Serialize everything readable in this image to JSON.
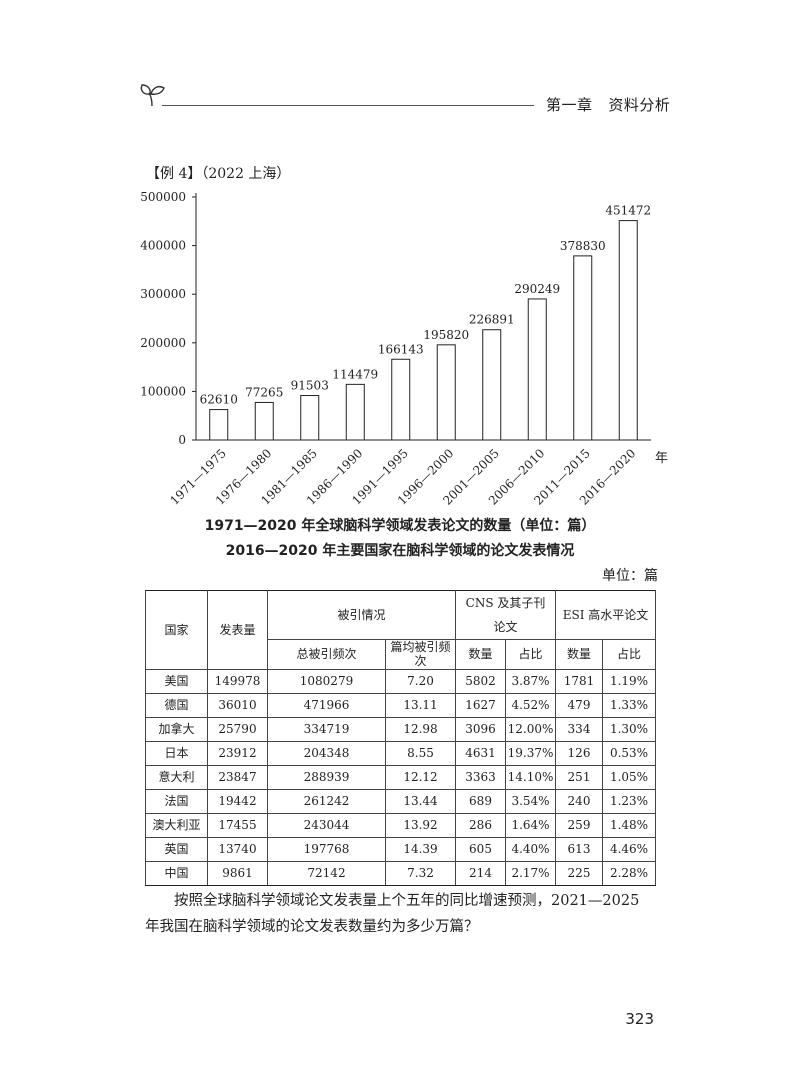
{
  "header": {
    "chapter": "第一章",
    "section": "资料分析"
  },
  "example": {
    "label": "【例 4】（2022 上海）"
  },
  "chart_data": {
    "type": "bar",
    "title": "1971—2020 年全球脑科学领域发表论文的数量（单位：篇）",
    "categories": [
      "1971—1975",
      "1976—1980",
      "1981—1985",
      "1986—1990",
      "1991—1995",
      "1996—2000",
      "2001—2005",
      "2006—2010",
      "2011—2015",
      "2016—2020"
    ],
    "values": [
      62610,
      77265,
      91503,
      114479,
      166143,
      195820,
      226891,
      290249,
      378830,
      451472
    ],
    "xlabel": "年",
    "ylabel": "",
    "ylim": [
      0,
      500000
    ],
    "yticks": [
      0,
      100000,
      200000,
      300000,
      400000,
      500000
    ],
    "grid": false,
    "bar_fill": "#ffffff",
    "bar_stroke": "#222222"
  },
  "table": {
    "title": "2016—2020 年主要国家在脑科学领域的论文发表情况",
    "unit": "单位：篇",
    "headers": {
      "country": "国家",
      "count": "发表量",
      "citations": "被引情况",
      "cns": "CNS 及其子刊论文",
      "esi": "ESI 高水平论文",
      "total_cites": "总被引频次",
      "avg_cites": "篇均被引频次",
      "number": "数量",
      "share": "占比"
    },
    "rows": [
      [
        "美国",
        "149978",
        "1080279",
        "7.20",
        "5802",
        "3.87%",
        "1781",
        "1.19%"
      ],
      [
        "德国",
        "36010",
        "471966",
        "13.11",
        "1627",
        "4.52%",
        "479",
        "1.33%"
      ],
      [
        "加拿大",
        "25790",
        "334719",
        "12.98",
        "3096",
        "12.00%",
        "334",
        "1.30%"
      ],
      [
        "日本",
        "23912",
        "204348",
        "8.55",
        "4631",
        "19.37%",
        "126",
        "0.53%"
      ],
      [
        "意大利",
        "23847",
        "288939",
        "12.12",
        "3363",
        "14.10%",
        "251",
        "1.05%"
      ],
      [
        "法国",
        "19442",
        "261242",
        "13.44",
        "689",
        "3.54%",
        "240",
        "1.23%"
      ],
      [
        "澳大利亚",
        "17455",
        "243044",
        "13.92",
        "286",
        "1.64%",
        "259",
        "1.48%"
      ],
      [
        "英国",
        "13740",
        "197768",
        "14.39",
        "605",
        "4.40%",
        "613",
        "4.46%"
      ],
      [
        "中国",
        "9861",
        "72142",
        "7.32",
        "214",
        "2.17%",
        "225",
        "2.28%"
      ]
    ]
  },
  "question": "按照全球脑科学领域论文发表量上个五年的同比增速预测，2021—2025 年我国在脑科学领域的论文发表数量约为多少万篇？",
  "page_number": "323"
}
